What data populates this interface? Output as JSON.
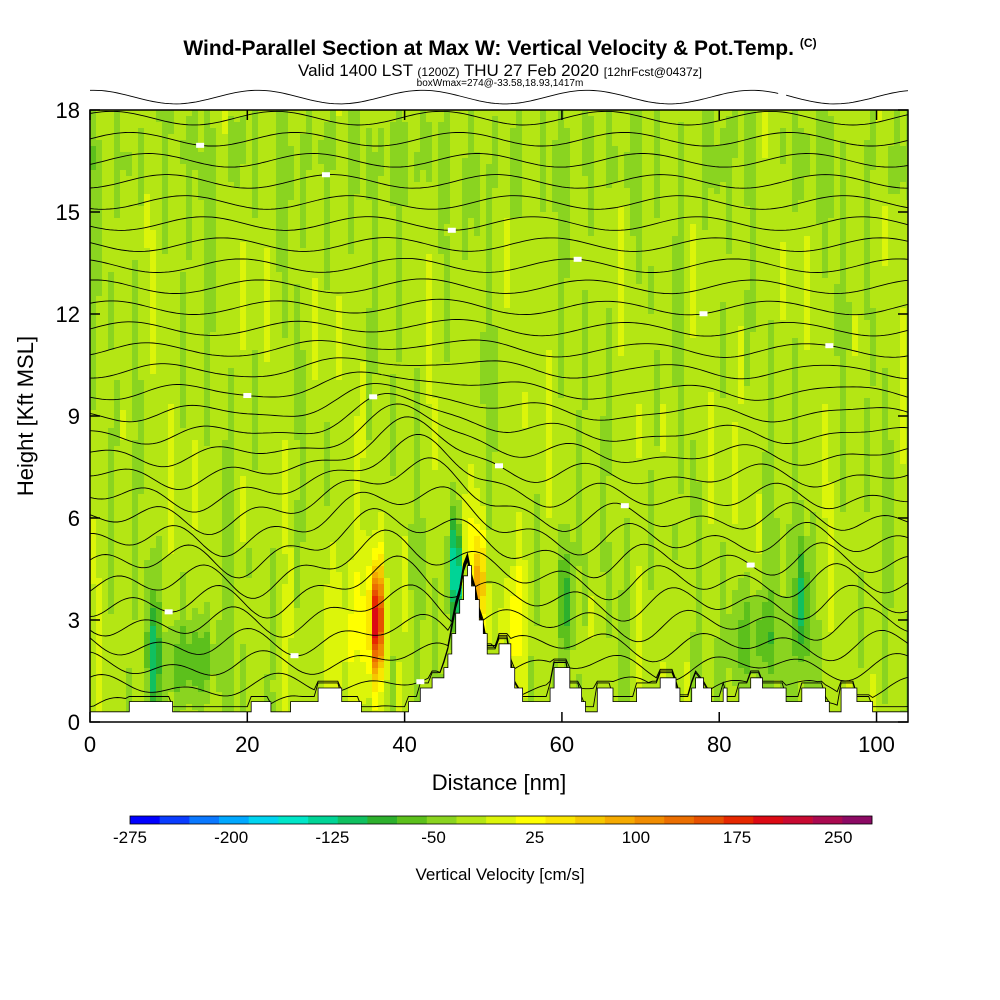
{
  "header": {
    "title": "Wind-Parallel Section at Max W: Vertical Velocity & Pot.Temp.",
    "copyright": "(C)",
    "valid_prefix": "Valid 1400 LST",
    "valid_utc": "(1200Z)",
    "valid_date": "THU 27 Feb 2020",
    "forecast": "[12hrFcst@0437z]",
    "box_info": "boxWmax=274@-33.58,18.93,1417m"
  },
  "chart_data": {
    "type": "heatmap",
    "title": "Wind-Parallel Section at Max W: Vertical Velocity & Pot.Temp.",
    "xlabel": "Distance [nm]",
    "ylabel": "Height [Kft MSL]",
    "xlim": [
      0,
      104
    ],
    "ylim": [
      0,
      18
    ],
    "x_ticks": [
      0,
      20,
      40,
      60,
      80,
      100
    ],
    "y_ticks": [
      0,
      3,
      6,
      9,
      12,
      15,
      18
    ],
    "colorbar": {
      "title": "Vertical Velocity [cm/s]",
      "min": -275,
      "max": 275,
      "step": 25,
      "tick_values": [
        -275,
        -200,
        -125,
        -50,
        25,
        100,
        175,
        250
      ],
      "colors": [
        "#0000ff",
        "#0a3cff",
        "#0a78ff",
        "#00a8ff",
        "#00d4f0",
        "#00e6c8",
        "#00d496",
        "#10c060",
        "#2db02d",
        "#5cc01c",
        "#8ad420",
        "#b4e614",
        "#dcf50a",
        "#ffff00",
        "#fae600",
        "#f5c800",
        "#f5aa00",
        "#f08c00",
        "#eb6e00",
        "#e65000",
        "#e62800",
        "#dc0a14",
        "#c80a32",
        "#aa0a50",
        "#8c0a64"
      ]
    },
    "terrain": [
      [
        0,
        0.3
      ],
      [
        2,
        0.3
      ],
      [
        4,
        0.3
      ],
      [
        5,
        0.6
      ],
      [
        10,
        0.6
      ],
      [
        10.5,
        0.3
      ],
      [
        20,
        0.3
      ],
      [
        20.5,
        0.6
      ],
      [
        22.5,
        0.6
      ],
      [
        23,
        0.3
      ],
      [
        25,
        0.3
      ],
      [
        25.5,
        0.6
      ],
      [
        28.5,
        0.6
      ],
      [
        29,
        1.0
      ],
      [
        31.5,
        1.0
      ],
      [
        32,
        0.6
      ],
      [
        34,
        0.6
      ],
      [
        34.5,
        0.3
      ],
      [
        36,
        0.3
      ],
      [
        40,
        0.3
      ],
      [
        40.5,
        0.6
      ],
      [
        41.5,
        0.6
      ],
      [
        42,
        1.0
      ],
      [
        43,
        1.0
      ],
      [
        43.5,
        1.3
      ],
      [
        44.5,
        1.3
      ],
      [
        45,
        1.6
      ],
      [
        45.5,
        2.0
      ],
      [
        46,
        2.6
      ],
      [
        46.5,
        3.2
      ],
      [
        47,
        3.6
      ],
      [
        47.5,
        4.3
      ],
      [
        48,
        4.6
      ],
      [
        48.5,
        4.0
      ],
      [
        49,
        3.6
      ],
      [
        49.5,
        3.0
      ],
      [
        50,
        2.6
      ],
      [
        50.5,
        2.0
      ],
      [
        51.5,
        2.0
      ],
      [
        52,
        2.3
      ],
      [
        53,
        2.3
      ],
      [
        53.5,
        1.6
      ],
      [
        54,
        1.0
      ],
      [
        55,
        0.6
      ],
      [
        58,
        0.6
      ],
      [
        58.5,
        1.0
      ],
      [
        59,
        1.6
      ],
      [
        60.5,
        1.6
      ],
      [
        61,
        1.0
      ],
      [
        62,
        1.0
      ],
      [
        62.5,
        0.6
      ],
      [
        63,
        0.3
      ],
      [
        64,
        0.3
      ],
      [
        64.5,
        1.0
      ],
      [
        66,
        1.0
      ],
      [
        66.5,
        0.6
      ],
      [
        68,
        0.6
      ],
      [
        69,
        0.6
      ],
      [
        69.5,
        1.0
      ],
      [
        72,
        1.0
      ],
      [
        72.5,
        1.3
      ],
      [
        74,
        1.3
      ],
      [
        74.5,
        1.0
      ],
      [
        75,
        0.6
      ],
      [
        76,
        0.6
      ],
      [
        76.5,
        1.0
      ],
      [
        77,
        1.3
      ],
      [
        78,
        1.0
      ],
      [
        79,
        0.6
      ],
      [
        80,
        0.6
      ],
      [
        80.5,
        1.0
      ],
      [
        81,
        0.6
      ],
      [
        82,
        0.6
      ],
      [
        82.5,
        1.0
      ],
      [
        83.5,
        1.0
      ],
      [
        84,
        1.3
      ],
      [
        85,
        1.3
      ],
      [
        85.5,
        1.0
      ],
      [
        88,
        1.0
      ],
      [
        88.5,
        0.6
      ],
      [
        90,
        0.6
      ],
      [
        90.5,
        1.0
      ],
      [
        93,
        1.0
      ],
      [
        93.5,
        0.6
      ],
      [
        94,
        0.3
      ],
      [
        95,
        0.3
      ],
      [
        95.5,
        1.0
      ],
      [
        97,
        1.0
      ],
      [
        97.5,
        0.6
      ],
      [
        99,
        0.6
      ],
      [
        99.5,
        0.3
      ],
      [
        104,
        0.3
      ]
    ],
    "updraft_cores": [
      {
        "x": 36.5,
        "z": 3.0,
        "w": 250
      },
      {
        "x": 49.5,
        "z": 4.0,
        "w": 120
      },
      {
        "x": 47.5,
        "z": 5.5,
        "w": 60
      }
    ],
    "downdraft_cores": [
      {
        "x": 46.5,
        "z": 4.5,
        "w": -175
      },
      {
        "x": 60.5,
        "z": 3.5,
        "w": -100
      },
      {
        "x": 90.5,
        "z": 3.5,
        "w": -100
      },
      {
        "x": 8,
        "z": 2.0,
        "w": -75
      }
    ]
  }
}
